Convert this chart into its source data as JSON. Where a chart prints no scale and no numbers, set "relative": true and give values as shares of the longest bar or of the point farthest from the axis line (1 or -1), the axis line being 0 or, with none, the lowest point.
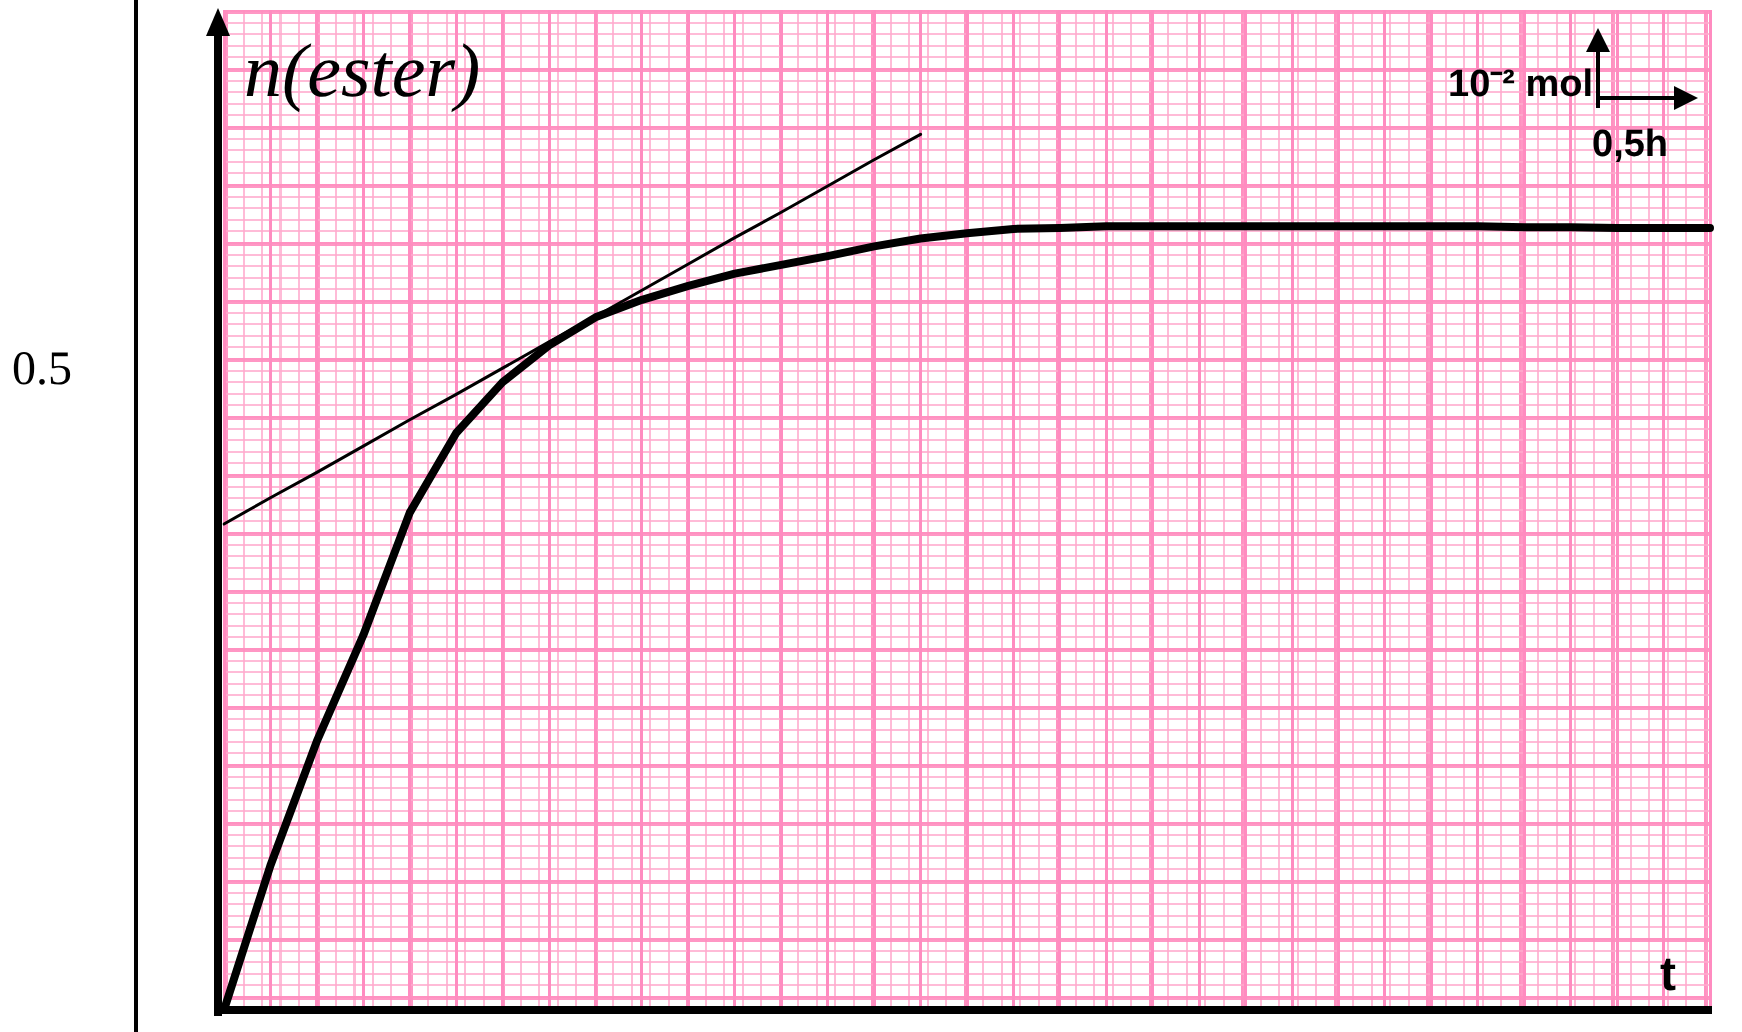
{
  "chart_data": {
    "type": "line",
    "relative": true,
    "xlabel": "t",
    "ylabel": "n(ester)",
    "annotations": [
      "10⁻² mol",
      "0,5h",
      "0.5"
    ],
    "categories": [
      null,
      null,
      null,
      null,
      null,
      null,
      null,
      null,
      null,
      null,
      null,
      null,
      null,
      null,
      null,
      null,
      null,
      null,
      null,
      null,
      null,
      null,
      null,
      null,
      null,
      null,
      null,
      null,
      null,
      null,
      null,
      null,
      null
    ],
    "grid": "x",
    "legend": false,
    "marker": "none",
    "series": [
      {
        "color": "#000000",
        "values": [
          0,
          0.165,
          0.307,
          0.428,
          0.568,
          0.659,
          0.717,
          0.759,
          0.791,
          0.811,
          0.827,
          0.841,
          0.851,
          0.861,
          0.872,
          0.881,
          0.887,
          0.892,
          0.893,
          0.895,
          0.895,
          0.895,
          0.895,
          0.895,
          0.895,
          0.895,
          0.895,
          0.895,
          0.894,
          0.894,
          0.893,
          0.893,
          0.893
        ]
      },
      {
        "color": "#000000",
        "type": "line",
        "values": [
          0.555,
          0.585,
          0.614,
          0.644,
          0.674,
          0.703,
          0.733,
          0.763,
          0.792,
          0.822,
          0.852,
          0.882,
          0.911,
          0.941,
          0.971,
          1,
          null,
          null,
          null,
          null,
          null,
          null,
          null,
          null,
          null,
          null,
          null,
          null,
          null,
          null,
          null,
          null,
          null
        ]
      }
    ]
  }
}
